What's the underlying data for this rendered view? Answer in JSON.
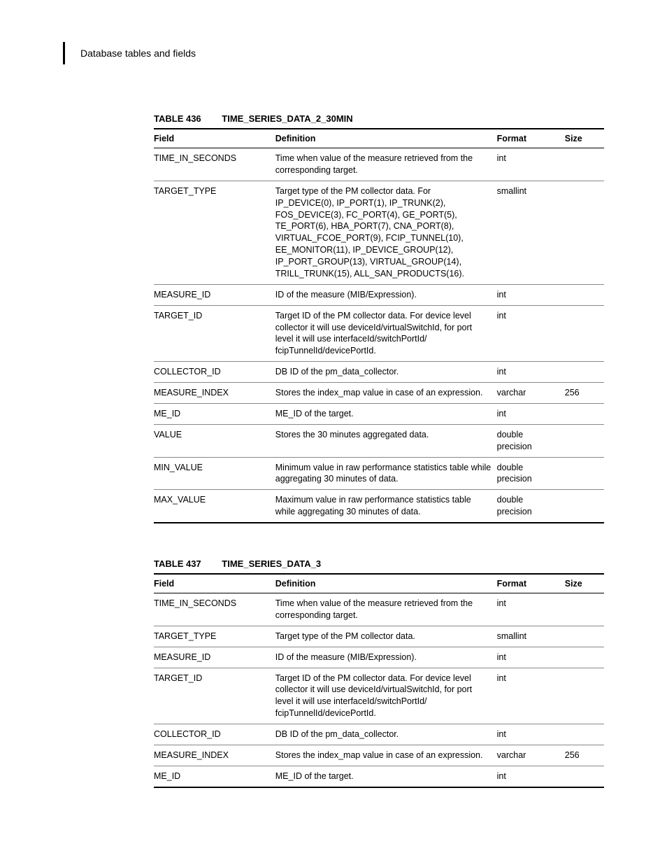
{
  "header": {
    "breadcrumb": "Database tables and fields"
  },
  "tables": [
    {
      "number": "TABLE 436",
      "name": "TIME_SERIES_DATA_2_30MIN",
      "columns": [
        "Field",
        "Definition",
        "Format",
        "Size"
      ],
      "rows": [
        {
          "field": "TIME_IN_SECONDS",
          "definition": "Time when value of the measure retrieved from the corresponding target.",
          "format": "int",
          "size": ""
        },
        {
          "field": "TARGET_TYPE",
          "definition": "Target type of the PM collector data. For IP_DEVICE(0), IP_PORT(1), IP_TRUNK(2), FOS_DEVICE(3), FC_PORT(4), GE_PORT(5), TE_PORT(6), HBA_PORT(7), CNA_PORT(8), VIRTUAL_FCOE_PORT(9), FCIP_TUNNEL(10), EE_MONITOR(11), IP_DEVICE_GROUP(12), IP_PORT_GROUP(13), VIRTUAL_GROUP(14), TRILL_TRUNK(15), ALL_SAN_PRODUCTS(16).",
          "format": "smallint",
          "size": ""
        },
        {
          "field": "MEASURE_ID",
          "definition": "ID of the measure (MIB/Expression).",
          "format": "int",
          "size": ""
        },
        {
          "field": "TARGET_ID",
          "definition": "Target ID of the PM collector data. For device level collector it will use deviceId/virtualSwitchId, for port level it will use interfaceId/switchPortId/ fcipTunnelId/devicePortId.",
          "format": "int",
          "size": ""
        },
        {
          "field": "COLLECTOR_ID",
          "definition": "DB ID of the pm_data_collector.",
          "format": "int",
          "size": ""
        },
        {
          "field": "MEASURE_INDEX",
          "definition": "Stores the index_map value in case of an expression.",
          "format": "varchar",
          "size": "256"
        },
        {
          "field": "ME_ID",
          "definition": "ME_ID of the target.",
          "format": "int",
          "size": ""
        },
        {
          "field": "VALUE",
          "definition": "Stores the 30 minutes aggregated data.",
          "format": "double precision",
          "size": ""
        },
        {
          "field": "MIN_VALUE",
          "definition": "Minimum value in raw performance statistics table while aggregating 30 minutes of data.",
          "format": "double precision",
          "size": ""
        },
        {
          "field": "MAX_VALUE",
          "definition": "Maximum value in raw performance statistics table while aggregating 30 minutes of data.",
          "format": "double precision",
          "size": ""
        }
      ]
    },
    {
      "number": "TABLE 437",
      "name": "TIME_SERIES_DATA_3",
      "columns": [
        "Field",
        "Definition",
        "Format",
        "Size"
      ],
      "rows": [
        {
          "field": "TIME_IN_SECONDS",
          "definition": "Time when value of the measure retrieved from the corresponding target.",
          "format": "int",
          "size": ""
        },
        {
          "field": "TARGET_TYPE",
          "definition": "Target type of the PM collector data.",
          "format": "smallint",
          "size": ""
        },
        {
          "field": "MEASURE_ID",
          "definition": "ID of the measure (MIB/Expression).",
          "format": "int",
          "size": ""
        },
        {
          "field": "TARGET_ID",
          "definition": "Target ID of the PM collector data. For device level collector it will use deviceId/virtualSwitchId, for port level it will use interfaceId/switchPortId/ fcipTunnelId/devicePortId.",
          "format": "int",
          "size": ""
        },
        {
          "field": "COLLECTOR_ID",
          "definition": "DB ID of the pm_data_collector.",
          "format": "int",
          "size": ""
        },
        {
          "field": "MEASURE_INDEX",
          "definition": "Stores the index_map value in case of an expression.",
          "format": "varchar",
          "size": "256"
        },
        {
          "field": "ME_ID",
          "definition": "ME_ID of the target.",
          "format": "int",
          "size": ""
        }
      ]
    }
  ]
}
